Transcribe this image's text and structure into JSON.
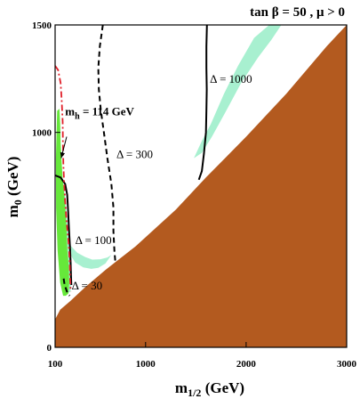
{
  "chart_data": {
    "type": "area",
    "title": "tan β = 50 ,  μ > 0",
    "xlabel": "m",
    "xlabel_sub": "1/2",
    "xlabel_unit": " (GeV)",
    "ylabel": "m",
    "ylabel_sub": "0",
    "ylabel_unit": " (GeV)",
    "xlim": [
      100,
      3000
    ],
    "ylim": [
      0,
      1500
    ],
    "x_scale": "linear",
    "x_ticks": [
      100,
      1000,
      2000,
      3000
    ],
    "x_tick_labels": [
      "100",
      "1000",
      "2000",
      "3000"
    ],
    "y_ticks": [
      0,
      1000,
      1500
    ],
    "y_tick_labels": [
      "0",
      "1000",
      "1500"
    ],
    "grid": false,
    "colors": {
      "excluded_region": "#b35a1f",
      "wmap_band": "#a8f0d0",
      "bsg_band": "#66e83a",
      "delta_contour": "#000000",
      "higgs_contour": "#e0202a"
    },
    "regions": [
      {
        "id": "excluded",
        "points": [
          [
            100,
            130
          ],
          [
            150,
            175
          ],
          [
            250,
            215
          ],
          [
            400,
            280
          ],
          [
            600,
            360
          ],
          [
            900,
            470
          ],
          [
            1300,
            640
          ],
          [
            1600,
            790
          ],
          [
            2000,
            980
          ],
          [
            2400,
            1180
          ],
          [
            2800,
            1400
          ],
          [
            3000,
            1500
          ],
          [
            3000,
            0
          ],
          [
            100,
            0
          ]
        ]
      },
      {
        "id": "wmap-upper",
        "points": [
          [
            1480,
            880
          ],
          [
            1560,
            960
          ],
          [
            1650,
            1040
          ],
          [
            1780,
            1180
          ],
          [
            1920,
            1310
          ],
          [
            2080,
            1440
          ],
          [
            2230,
            1500
          ],
          [
            2350,
            1500
          ],
          [
            2250,
            1430
          ],
          [
            2120,
            1350
          ],
          [
            1950,
            1230
          ],
          [
            1790,
            1090
          ],
          [
            1660,
            980
          ],
          [
            1560,
            905
          ]
        ]
      },
      {
        "id": "wmap-lower",
        "points": [
          [
            180,
            540
          ],
          [
            250,
            475
          ],
          [
            320,
            440
          ],
          [
            400,
            420
          ],
          [
            470,
            408
          ],
          [
            550,
            410
          ],
          [
            620,
            418
          ],
          [
            660,
            430
          ],
          [
            600,
            390
          ],
          [
            530,
            370
          ],
          [
            460,
            365
          ],
          [
            380,
            372
          ],
          [
            300,
            395
          ],
          [
            240,
            440
          ],
          [
            190,
            500
          ],
          [
            150,
            560
          ]
        ]
      },
      {
        "id": "wmap-left",
        "points": [
          [
            140,
            770
          ],
          [
            180,
            760
          ],
          [
            200,
            700
          ],
          [
            215,
            620
          ],
          [
            230,
            540
          ],
          [
            245,
            450
          ],
          [
            260,
            350
          ],
          [
            255,
            260
          ],
          [
            220,
            250
          ],
          [
            190,
            330
          ],
          [
            160,
            460
          ],
          [
            140,
            600
          ]
        ]
      },
      {
        "id": "bsg",
        "points": [
          [
            120,
            1100
          ],
          [
            142,
            1110
          ],
          [
            150,
            1040
          ],
          [
            155,
            950
          ],
          [
            165,
            860
          ],
          [
            175,
            780
          ],
          [
            190,
            720
          ],
          [
            200,
            660
          ],
          [
            212,
            560
          ],
          [
            222,
            450
          ],
          [
            235,
            380
          ],
          [
            240,
            300
          ],
          [
            232,
            250
          ],
          [
            205,
            240
          ],
          [
            180,
            240
          ],
          [
            150,
            300
          ],
          [
            125,
            450
          ],
          [
            110,
            650
          ],
          [
            108,
            880
          ]
        ]
      }
    ],
    "contours": [
      {
        "label": "Δ = 1000",
        "style": "solid",
        "points": [
          [
            1610,
            1500
          ],
          [
            1605,
            1400
          ],
          [
            1605,
            1300
          ],
          [
            1608,
            1200
          ],
          [
            1605,
            1100
          ],
          [
            1600,
            1000
          ],
          [
            1580,
            900
          ],
          [
            1560,
            820
          ],
          [
            1530,
            780
          ]
        ]
      },
      {
        "label": "Δ = 300",
        "style": "dashed",
        "points": [
          [
            575,
            1500
          ],
          [
            545,
            1400
          ],
          [
            530,
            1300
          ],
          [
            535,
            1200
          ],
          [
            555,
            1100
          ],
          [
            585,
            1000
          ],
          [
            620,
            880
          ],
          [
            660,
            760
          ],
          [
            680,
            650
          ],
          [
            680,
            540
          ],
          [
            690,
            450
          ],
          [
            700,
            390
          ]
        ]
      },
      {
        "label": "Δ = 100",
        "style": "solid",
        "points": [
          [
            100,
            800
          ],
          [
            155,
            790
          ],
          [
            200,
            760
          ],
          [
            220,
            710
          ],
          [
            230,
            630
          ],
          [
            238,
            550
          ],
          [
            248,
            470
          ],
          [
            255,
            390
          ],
          [
            258,
            330
          ],
          [
            262,
            290
          ]
        ]
      },
      {
        "label": "Δ = 30",
        "style": "dashed",
        "points": [
          [
            185,
            320
          ],
          [
            195,
            290
          ],
          [
            210,
            270
          ],
          [
            225,
            250
          ],
          [
            245,
            240
          ]
        ]
      },
      {
        "label": "m_h = 114 GeV",
        "style": "dashdot",
        "points": [
          [
            100,
            1310
          ],
          [
            130,
            1290
          ],
          [
            155,
            1230
          ],
          [
            165,
            1150
          ],
          [
            175,
            1050
          ],
          [
            178,
            950
          ],
          [
            182,
            850
          ],
          [
            190,
            760
          ],
          [
            200,
            680
          ],
          [
            215,
            580
          ],
          [
            235,
            480
          ],
          [
            245,
            400
          ],
          [
            250,
            310
          ],
          [
            255,
            260
          ]
        ]
      }
    ],
    "annotations": [
      {
        "id": "higgs-label",
        "main": "m",
        "sub": "h",
        "rest": " = 114 GeV",
        "x": 200,
        "y": 1080
      },
      {
        "id": "delta-1000-label",
        "text": "Δ = 1000",
        "x": 1640,
        "y": 1230
      },
      {
        "id": "delta-300-label",
        "text": "Δ = 300",
        "x": 710,
        "y": 880
      },
      {
        "id": "delta-100-label",
        "text": "Δ = 100",
        "x": 300,
        "y": 480
      },
      {
        "id": "delta-30-label",
        "text": "Δ = 30",
        "x": 265,
        "y": 270
      }
    ],
    "higgs_arrow": {
      "from": [
        215,
        980
      ],
      "to": [
        160,
        880
      ]
    }
  }
}
